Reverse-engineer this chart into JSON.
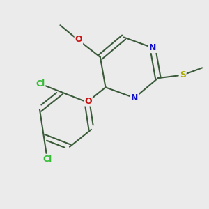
{
  "bg_color": "#ebebeb",
  "bond_color": "#3a5a3a",
  "bond_width": 1.5,
  "N_color": "#1010cc",
  "O_color": "#cc1010",
  "S_color": "#aaaa00",
  "Cl_color": "#33bb33",
  "figsize": [
    3.0,
    3.0
  ],
  "dpi": 100,
  "xlim": [
    0,
    10
  ],
  "ylim": [
    0,
    10
  ]
}
